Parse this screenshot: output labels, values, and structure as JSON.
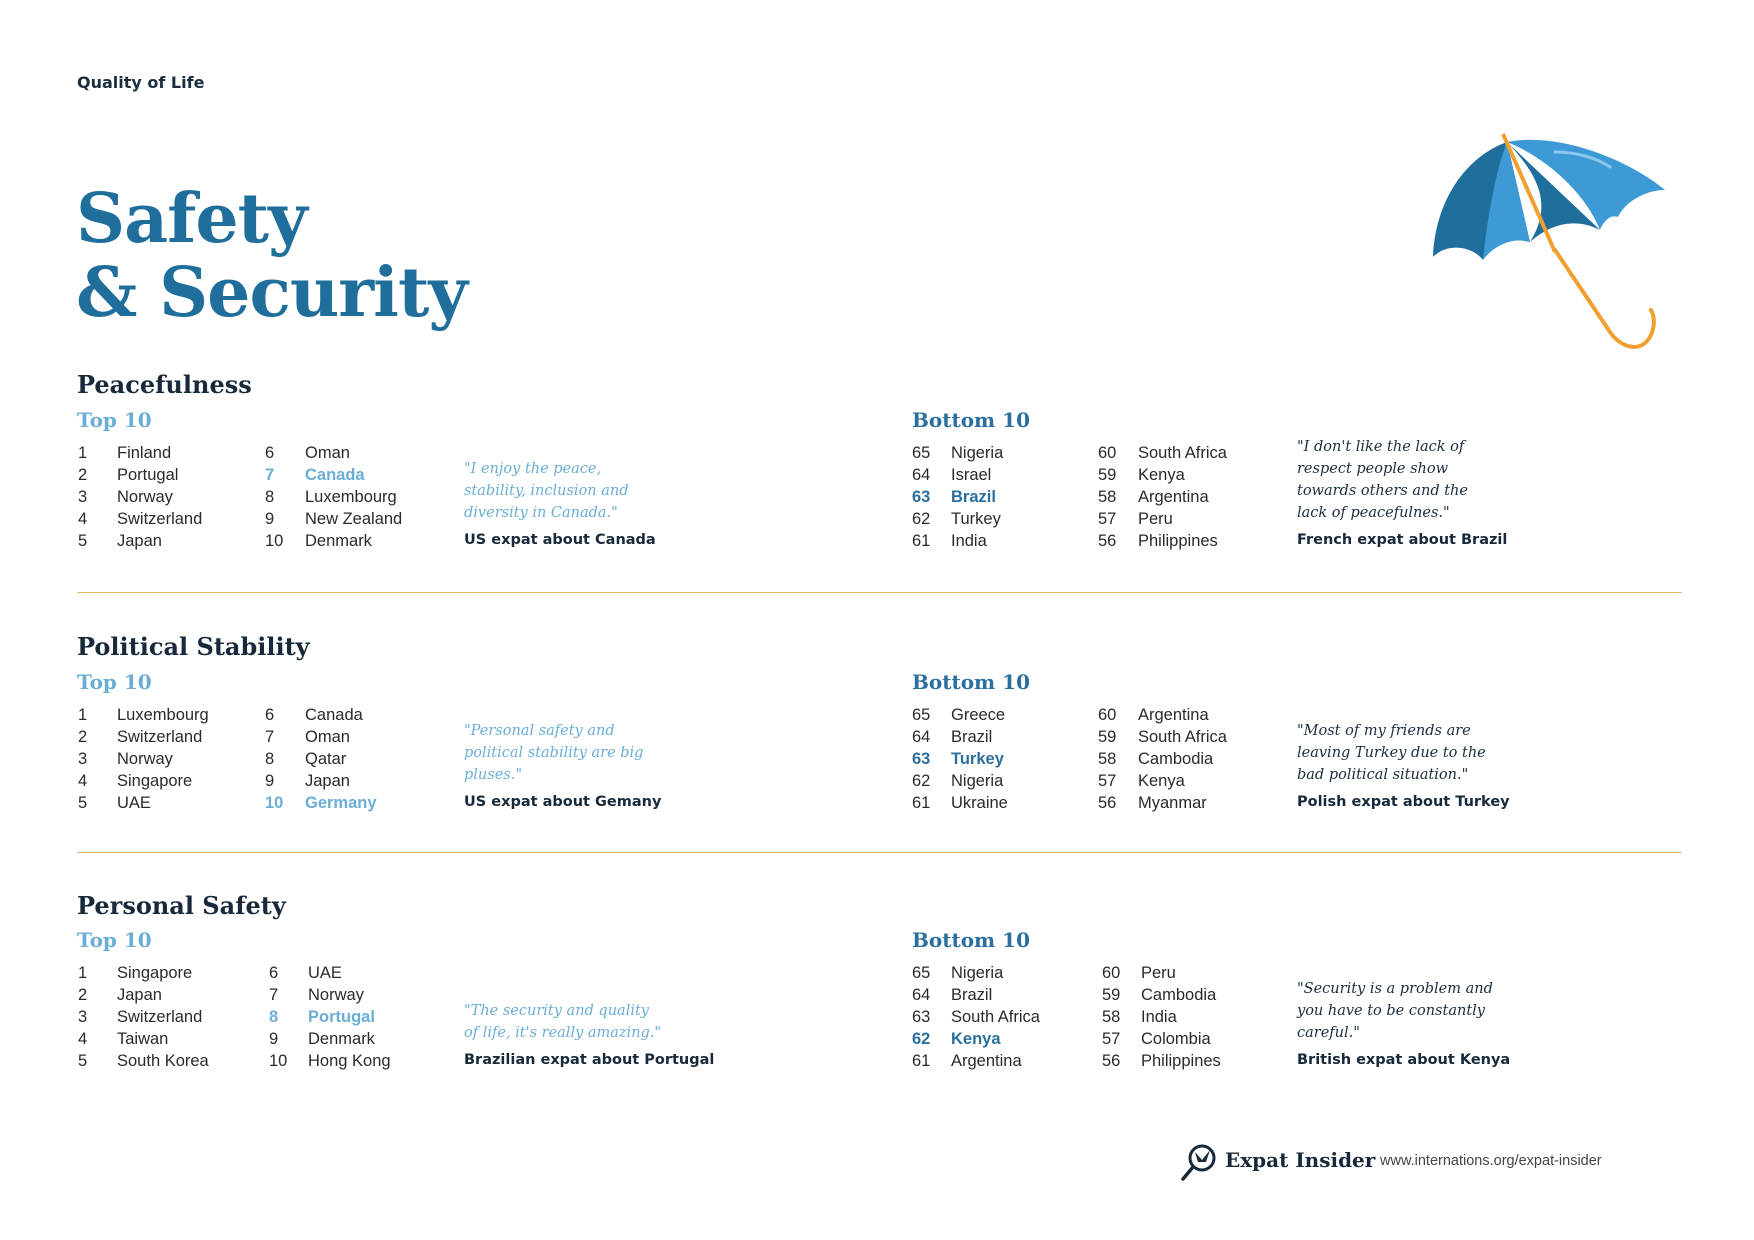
{
  "header": {
    "kicker": "Quality of Life",
    "title_line1": "Safety",
    "title_line2": "& Security"
  },
  "colors": {
    "title": "#1f6e9c",
    "top_accent": "#6aaed6",
    "bottom_accent": "#2a6f9e",
    "divider": "#e3b870",
    "umbrella_dark": "#1f6e9c",
    "umbrella_light": "#3d9ad6",
    "handle": "#f0a030"
  },
  "sections": [
    {
      "title": "Peacefulness",
      "top_label": "Top 10",
      "bottom_label": "Bottom 10",
      "top": [
        [
          "1",
          "Finland"
        ],
        [
          "2",
          "Portugal"
        ],
        [
          "3",
          "Norway"
        ],
        [
          "4",
          "Switzerland"
        ],
        [
          "5",
          "Japan"
        ],
        [
          "6",
          "Oman"
        ],
        [
          "7",
          "Canada"
        ],
        [
          "8",
          "Luxembourg"
        ],
        [
          "9",
          "New Zealand"
        ],
        [
          "10",
          "Denmark"
        ]
      ],
      "top_highlight": "7",
      "top_quote": "\"I enjoy the peace, stability, inclusion and diversity in Canada.\"",
      "top_attr": "US expat about Canada",
      "bottom": [
        [
          "65",
          "Nigeria"
        ],
        [
          "64",
          "Israel"
        ],
        [
          "63",
          "Brazil"
        ],
        [
          "62",
          "Turkey"
        ],
        [
          "61",
          "India"
        ],
        [
          "60",
          "South Africa"
        ],
        [
          "59",
          "Kenya"
        ],
        [
          "58",
          "Argentina"
        ],
        [
          "57",
          "Peru"
        ],
        [
          "56",
          "Philippines"
        ]
      ],
      "bottom_highlight": "63",
      "bottom_quote": "\"I don't like the lack of respect people show towards others and the lack of peacefulnes.\"",
      "bottom_attr": "French expat about Brazil"
    },
    {
      "title": "Political Stability",
      "top_label": "Top 10",
      "bottom_label": "Bottom 10",
      "top": [
        [
          "1",
          "Luxembourg"
        ],
        [
          "2",
          "Switzerland"
        ],
        [
          "3",
          "Norway"
        ],
        [
          "4",
          "Singapore"
        ],
        [
          "5",
          "UAE"
        ],
        [
          "6",
          "Canada"
        ],
        [
          "7",
          "Oman"
        ],
        [
          "8",
          "Qatar"
        ],
        [
          "9",
          "Japan"
        ],
        [
          "10",
          "Germany"
        ]
      ],
      "top_highlight": "10",
      "top_quote": "\"Personal safety and political stability are big pluses.\"",
      "top_attr": "US expat about Gemany",
      "bottom": [
        [
          "65",
          "Greece"
        ],
        [
          "64",
          "Brazil"
        ],
        [
          "63",
          "Turkey"
        ],
        [
          "62",
          "Nigeria"
        ],
        [
          "61",
          "Ukraine"
        ],
        [
          "60",
          "Argentina"
        ],
        [
          "59",
          "South Africa"
        ],
        [
          "58",
          "Cambodia"
        ],
        [
          "57",
          "Kenya"
        ],
        [
          "56",
          "Myanmar"
        ]
      ],
      "bottom_highlight": "63",
      "bottom_quote": "\"Most of my friends are leaving Turkey due to the bad political situation.\"",
      "bottom_attr": "Polish expat about Turkey"
    },
    {
      "title": "Personal Safety",
      "top_label": "Top 10",
      "bottom_label": "Bottom 10",
      "top": [
        [
          "1",
          "Singapore"
        ],
        [
          "2",
          "Japan"
        ],
        [
          "3",
          "Switzerland"
        ],
        [
          "4",
          "Taiwan"
        ],
        [
          "5",
          "South Korea"
        ],
        [
          "6",
          "UAE"
        ],
        [
          "7",
          "Norway"
        ],
        [
          "8",
          "Portugal"
        ],
        [
          "9",
          "Denmark"
        ],
        [
          "10",
          "Hong Kong"
        ]
      ],
      "top_highlight": "8",
      "top_quote": "\"The security and quality of life, it's really amazing.\"",
      "top_attr": "Brazilian expat about Portugal",
      "bottom": [
        [
          "65",
          "Nigeria"
        ],
        [
          "64",
          "Brazil"
        ],
        [
          "63",
          "South Africa"
        ],
        [
          "62",
          "Kenya"
        ],
        [
          "61",
          "Argentina"
        ],
        [
          "60",
          "Peru"
        ],
        [
          "59",
          "Cambodia"
        ],
        [
          "58",
          "India"
        ],
        [
          "57",
          "Colombia"
        ],
        [
          "56",
          "Philippines"
        ]
      ],
      "bottom_highlight": "62",
      "bottom_quote": "\"Security is a problem and you have to be constantly careful.\"",
      "bottom_attr": "British expat about Kenya"
    }
  ],
  "footer": {
    "brand": "Expat Insider",
    "url": "www.internations.org/expat-insider",
    "logo_icon": "magnifier-bird-icon"
  }
}
